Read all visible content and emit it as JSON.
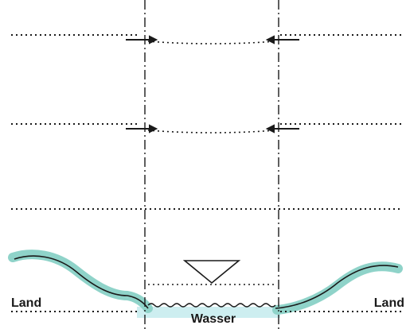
{
  "labels": {
    "land_left": "Land",
    "land_right": "Land",
    "water": "Wasser"
  },
  "colors": {
    "land_band": "#8fd3c9",
    "water": "#cdeef0",
    "lines": "#1a1a1a"
  },
  "elements": {
    "water_level_symbol": "inverted-triangle-icon",
    "inward_arrows": "arrow-right-icon / arrow-left-icon"
  }
}
